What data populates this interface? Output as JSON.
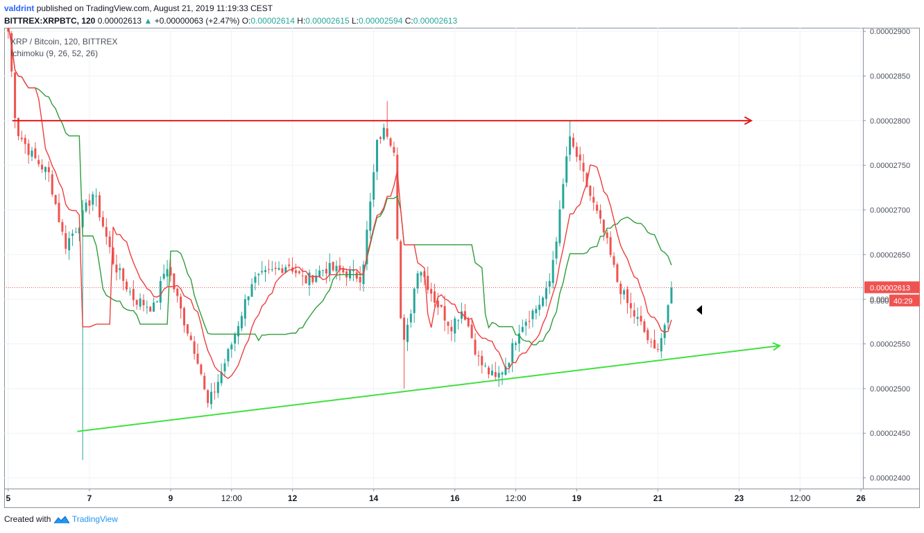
{
  "header": {
    "author": "valdrint",
    "published_text": "published on TradingView.com, August 21, 2019 11:19:33 CEST",
    "symbol": "BITTREX:XRPBTC, 120",
    "price": "0.00002613",
    "change_arrow": "▲",
    "change": "+0.00000063 (+2.47%)",
    "o_label": "O:",
    "o_value": "0.00002614",
    "h_label": "H:",
    "h_value": "0.00002615",
    "l_label": "L:",
    "l_value": "0.00002594",
    "c_label": "C:",
    "c_value": "0.00002613"
  },
  "legend": {
    "title": "XRP / Bitcoin, 120, BITTREX",
    "indicator": "Ichimoku (9, 26, 52, 26)"
  },
  "price_label": {
    "value": "0.00002613",
    "countdown": "40:29",
    "partial": "0.000"
  },
  "footer": {
    "created_with": "Created with",
    "brand": "TradingView",
    "logo_icon": "tradingview-logo-icon"
  },
  "colors": {
    "up": "#26a69a",
    "down": "#ef5350",
    "grid": "#eef2f5",
    "resistance": "#e01b1b",
    "support": "#3ee03e",
    "conversion_line": "#ef3d3d",
    "base_line": "#2e9c3a",
    "price_tag": "#ef5350"
  },
  "chart_data": {
    "type": "candlestick",
    "symbol": "XRPBTC",
    "interval": "120",
    "x_axis": {
      "ticks": [
        "5",
        "7",
        "9",
        "12:00",
        "12",
        "14",
        "16",
        "12:00",
        "19",
        "21",
        "23",
        "12:00",
        "26"
      ],
      "tick_positions_days": [
        5,
        7,
        9,
        10.5,
        12,
        14,
        16,
        17.5,
        19,
        21,
        23,
        24.5,
        26
      ],
      "range_days": [
        4.9,
        26.05
      ]
    },
    "y_axis": {
      "ticks": [
        "0.00002400",
        "0.00002450",
        "0.00002500",
        "0.00002550",
        "0.00002600",
        "0.00002650",
        "0.00002700",
        "0.00002750",
        "0.00002800",
        "0.00002850",
        "0.00002900"
      ],
      "tick_values": [
        2400,
        2450,
        2500,
        2550,
        2600,
        2650,
        2700,
        2750,
        2800,
        2850,
        2900
      ],
      "unit": "satoshi",
      "range": [
        2388,
        2904
      ]
    },
    "price_line": 2613,
    "swing_points": [
      {
        "day": 5.0,
        "price": 2900
      },
      {
        "day": 5.2,
        "price": 2790
      },
      {
        "day": 5.6,
        "price": 2760
      },
      {
        "day": 6.0,
        "price": 2740
      },
      {
        "day": 6.4,
        "price": 2660
      },
      {
        "day": 6.8,
        "price": 2690
      },
      {
        "day": 7.1,
        "price": 2720
      },
      {
        "day": 7.6,
        "price": 2640
      },
      {
        "day": 8.1,
        "price": 2600
      },
      {
        "day": 8.6,
        "price": 2590
      },
      {
        "day": 8.9,
        "price": 2640
      },
      {
        "day": 9.3,
        "price": 2580
      },
      {
        "day": 9.7,
        "price": 2530
      },
      {
        "day": 9.9,
        "price": 2480
      },
      {
        "day": 10.1,
        "price": 2500
      },
      {
        "day": 10.5,
        "price": 2550
      },
      {
        "day": 11.0,
        "price": 2620
      },
      {
        "day": 11.5,
        "price": 2630
      },
      {
        "day": 11.9,
        "price": 2640
      },
      {
        "day": 12.3,
        "price": 2620
      },
      {
        "day": 12.8,
        "price": 2635
      },
      {
        "day": 13.3,
        "price": 2630
      },
      {
        "day": 13.7,
        "price": 2625
      },
      {
        "day": 13.9,
        "price": 2700
      },
      {
        "day": 14.1,
        "price": 2780
      },
      {
        "day": 14.3,
        "price": 2790
      },
      {
        "day": 14.5,
        "price": 2770
      },
      {
        "day": 14.7,
        "price": 2540
      },
      {
        "day": 14.85,
        "price": 2570
      },
      {
        "day": 15.1,
        "price": 2640
      },
      {
        "day": 15.5,
        "price": 2600
      },
      {
        "day": 15.9,
        "price": 2570
      },
      {
        "day": 16.2,
        "price": 2590
      },
      {
        "day": 16.6,
        "price": 2530
      },
      {
        "day": 17.0,
        "price": 2510
      },
      {
        "day": 17.3,
        "price": 2530
      },
      {
        "day": 17.6,
        "price": 2570
      },
      {
        "day": 18.0,
        "price": 2590
      },
      {
        "day": 18.3,
        "price": 2610
      },
      {
        "day": 18.6,
        "price": 2700
      },
      {
        "day": 18.8,
        "price": 2780
      },
      {
        "day": 19.0,
        "price": 2760
      },
      {
        "day": 19.3,
        "price": 2720
      },
      {
        "day": 19.7,
        "price": 2670
      },
      {
        "day": 20.0,
        "price": 2620
      },
      {
        "day": 20.3,
        "price": 2590
      },
      {
        "day": 20.6,
        "price": 2570
      },
      {
        "day": 20.9,
        "price": 2540
      },
      {
        "day": 21.1,
        "price": 2560
      },
      {
        "day": 21.4,
        "price": 2613
      }
    ],
    "drawings": [
      {
        "type": "horizontal_arrow",
        "name": "resistance-line",
        "color": "#e01b1b",
        "from": {
          "day": 5.1,
          "price": 2800
        },
        "to": {
          "day": 23.3,
          "price": 2800
        }
      },
      {
        "type": "trend_arrow",
        "name": "support-line",
        "color": "#3ee03e",
        "from": {
          "day": 6.7,
          "price": 2452
        },
        "to": {
          "day": 24.0,
          "price": 2548
        }
      }
    ]
  }
}
